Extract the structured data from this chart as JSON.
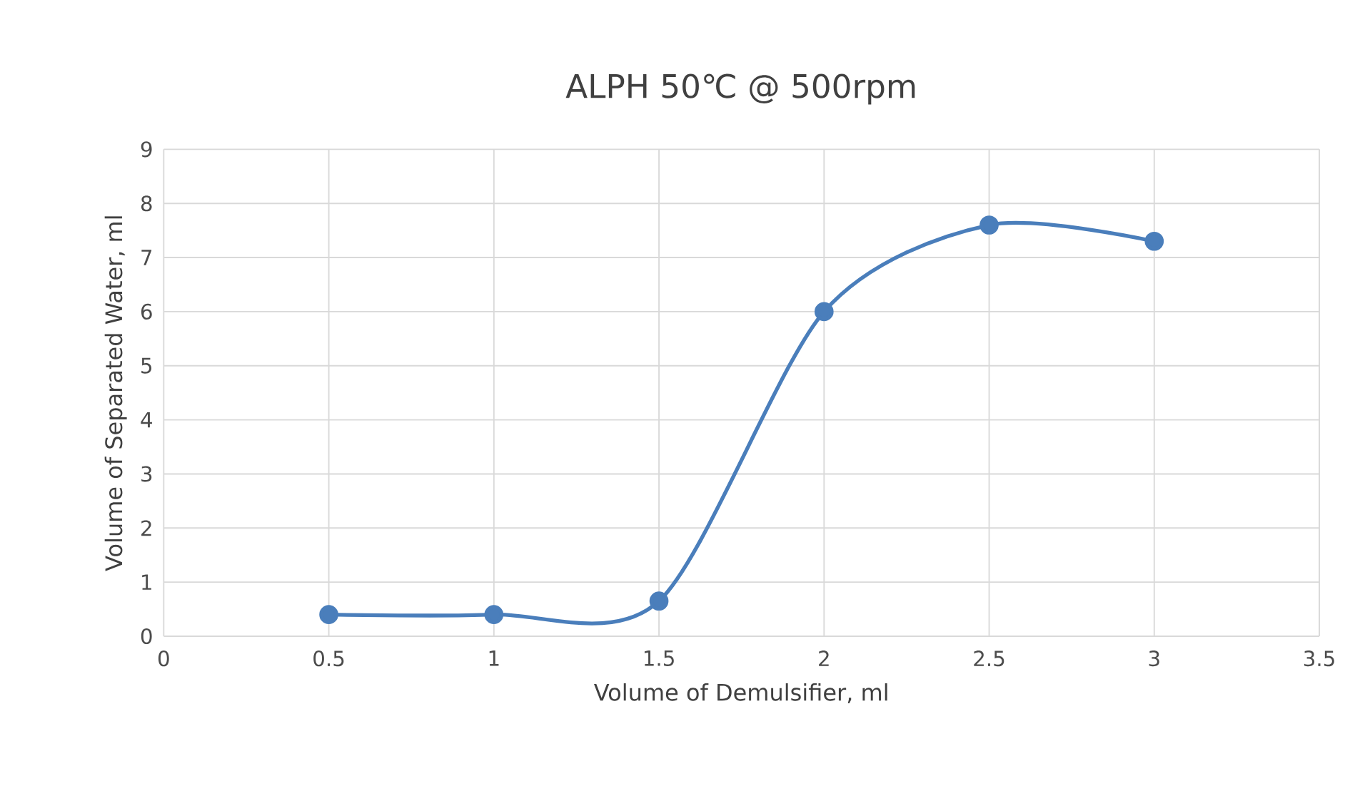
{
  "chart_data": {
    "type": "line",
    "title": "ALPH 50℃ @ 500rpm",
    "xlabel": "Volume of Demulsifier, ml",
    "ylabel": "Volume of Separated Water, ml",
    "x": [
      0.5,
      1,
      1.5,
      2,
      2.5,
      3
    ],
    "series": [
      {
        "color": "#4a7ebb",
        "values": [
          0.4,
          0.4,
          0.65,
          6,
          7.6,
          7.3
        ]
      }
    ],
    "xlim": [
      0,
      3.5
    ],
    "xticks": [
      0,
      0.5,
      1,
      1.5,
      2,
      2.5,
      3,
      3.5
    ],
    "ylim": [
      0,
      9
    ],
    "yticks": [
      0,
      1,
      2,
      3,
      4,
      5,
      6,
      7,
      8,
      9
    ],
    "grid": true,
    "legend": false,
    "marker": "circle",
    "line_style": "solid"
  }
}
